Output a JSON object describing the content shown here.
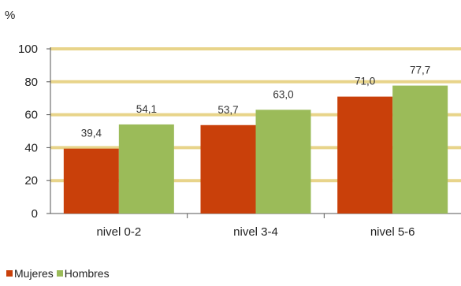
{
  "chart_data": {
    "type": "bar",
    "unit_label": "%",
    "categories": [
      "nivel 0-2",
      "nivel 3-4",
      "nivel 5-6"
    ],
    "series": [
      {
        "name": "Mujeres",
        "color": "#C9400A",
        "values": [
          39.4,
          53.7,
          71.0
        ],
        "labels": [
          "39,4",
          "53,7",
          "71,0"
        ]
      },
      {
        "name": "Hombres",
        "color": "#9BBB59",
        "values": [
          54.1,
          63.0,
          77.7
        ],
        "labels": [
          "54,1",
          "63,0",
          "77,7"
        ]
      }
    ],
    "ylim": [
      0,
      100
    ],
    "yticks": [
      0,
      20,
      40,
      60,
      80,
      100
    ],
    "grid": true,
    "grid_color": "#E8D48A",
    "legend_position": "bottom-left"
  }
}
